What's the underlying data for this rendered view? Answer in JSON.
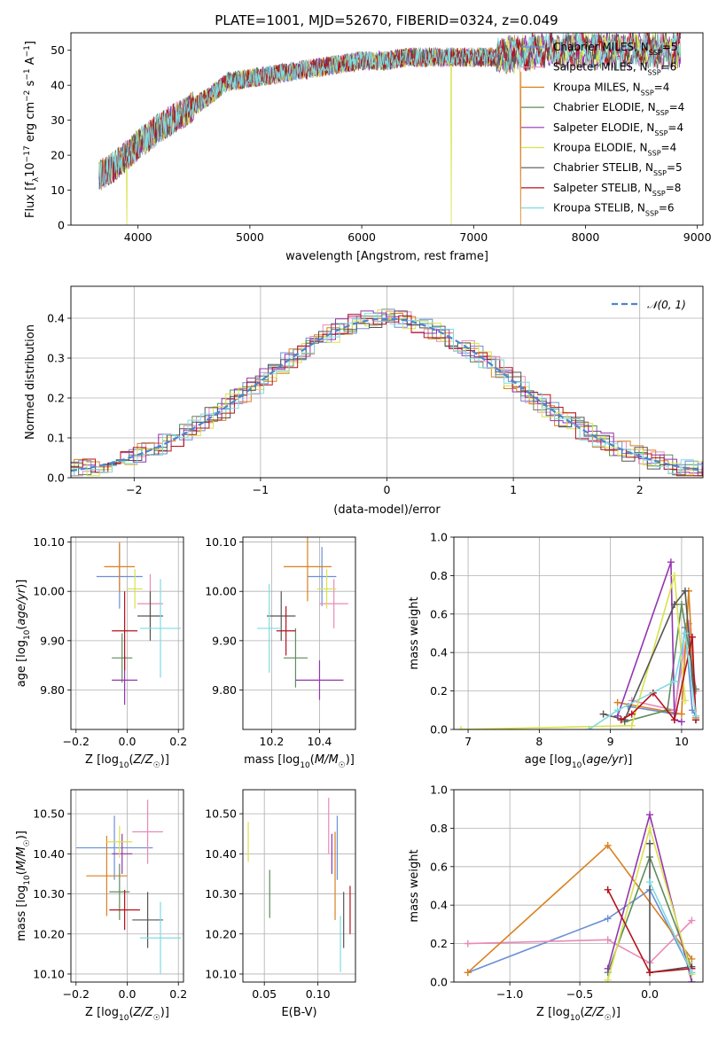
{
  "title": "PLATE=1001, MJD=52670, FIBERID=0324, z=0.049",
  "models": [
    {
      "name": "Chabrier MILES, N_SSP=5",
      "base": "Chabrier MILES, N",
      "sub": "SSP",
      "eq": "=5",
      "color": "#6a8fd6"
    },
    {
      "name": "Salpeter MILES, N_SSP=6",
      "base": "Salpeter MILES, N",
      "sub": "SSP",
      "eq": "=6",
      "color": "#e98ab8"
    },
    {
      "name": "Kroupa MILES, N_SSP=4",
      "base": "Kroupa MILES, N",
      "sub": "SSP",
      "eq": "=4",
      "color": "#d9801f"
    },
    {
      "name": "Chabrier ELODIE, N_SSP=4",
      "base": "Chabrier ELODIE, N",
      "sub": "SSP",
      "eq": "=4",
      "color": "#5d8c5d"
    },
    {
      "name": "Salpeter ELODIE, N_SSP=4",
      "base": "Salpeter ELODIE, N",
      "sub": "SSP",
      "eq": "=4",
      "color": "#9435b0"
    },
    {
      "name": "Kroupa ELODIE, N_SSP=4",
      "base": "Kroupa ELODIE, N",
      "sub": "SSP",
      "eq": "=4",
      "color": "#d9e24a"
    },
    {
      "name": "Chabrier STELIB, N_SSP=5",
      "base": "Chabrier STELIB, N",
      "sub": "SSP",
      "eq": "=5",
      "color": "#555555"
    },
    {
      "name": "Salpeter STELIB, N_SSP=8",
      "base": "Salpeter STELIB, N",
      "sub": "SSP",
      "eq": "=8",
      "color": "#b5121b"
    },
    {
      "name": "Kroupa STELIB, N_SSP=6",
      "base": "Kroupa STELIB, N",
      "sub": "SSP",
      "eq": "=6",
      "color": "#7fdbe0"
    }
  ],
  "chart_data": [
    {
      "id": "spectrum",
      "type": "line",
      "xlabel": "wavelength [Angstrom, rest frame]",
      "ylabel": "Flux [f_λ10^-17 erg cm^-2 s^-1 A^-1]",
      "xlim": [
        3400,
        9050
      ],
      "ylim": [
        0,
        55
      ],
      "xticks": [
        4000,
        5000,
        6000,
        7000,
        8000,
        9000
      ],
      "yticks": [
        0,
        10,
        20,
        30,
        40,
        50
      ],
      "x": [
        3650,
        3800,
        4000,
        4200,
        4400,
        4600,
        4800,
        5000,
        5200,
        5400,
        5600,
        5800,
        6000,
        6200,
        6400,
        6600,
        6800,
        7000,
        7200,
        7400,
        7600,
        7800
      ],
      "y": [
        14,
        17,
        23,
        28,
        32,
        36,
        41,
        42,
        43,
        44,
        45,
        46,
        47,
        47,
        48,
        48,
        48,
        48,
        48,
        49,
        50,
        50
      ],
      "drops": [
        {
          "model": "Kroupa ELODIE, N_SSP=4",
          "x": 3900
        },
        {
          "model": "Kroupa ELODIE, N_SSP=4",
          "x": 6800
        },
        {
          "model": "Kroupa MILES, N_SSP=4",
          "x": 7420
        }
      ]
    },
    {
      "id": "residuals",
      "type": "step",
      "xlabel": "(data-model)/error",
      "ylabel": "Normed distribution",
      "xlim": [
        -2.5,
        2.5
      ],
      "ylim": [
        0,
        0.48
      ],
      "xticks": [
        -2,
        -1,
        0,
        1,
        2
      ],
      "yticks": [
        0.0,
        0.1,
        0.2,
        0.3,
        0.4
      ],
      "reference": {
        "name": "N(0,1)",
        "mu": 0,
        "sigma": 1
      }
    },
    {
      "id": "Z-age",
      "type": "errorbar",
      "xlabel": "Z [log10(Z/Z☉)]",
      "ylabel": "age [log10(age/yr)]",
      "xlim": [
        -0.22,
        0.22
      ],
      "ylim": [
        9.72,
        10.11
      ],
      "xticks": [
        -0.2,
        0.0,
        0.2
      ],
      "yticks": [
        9.8,
        9.9,
        10.0,
        10.1
      ],
      "points": [
        {
          "model": "Chabrier MILES, N_SSP=5",
          "x": -0.03,
          "y": 10.03,
          "xerr": 0.09,
          "yerr": 0.065
        },
        {
          "model": "Salpeter MILES, N_SSP=6",
          "x": 0.09,
          "y": 9.975,
          "xerr": 0.05,
          "yerr": 0.06
        },
        {
          "model": "Kroupa MILES, N_SSP=4",
          "x": -0.03,
          "y": 10.05,
          "xerr": 0.06,
          "yerr": 0.05
        },
        {
          "model": "Chabrier ELODIE, N_SSP=4",
          "x": -0.02,
          "y": 9.865,
          "xerr": 0.04,
          "yerr": 0.05
        },
        {
          "model": "Salpeter ELODIE, N_SSP=4",
          "x": -0.01,
          "y": 9.82,
          "xerr": 0.05,
          "yerr": 0.05
        },
        {
          "model": "Kroupa ELODIE, N_SSP=4",
          "x": 0.03,
          "y": 10.005,
          "xerr": 0.03,
          "yerr": 0.04
        },
        {
          "model": "Chabrier STELIB, N_SSP=5",
          "x": 0.09,
          "y": 9.95,
          "xerr": 0.05,
          "yerr": 0.05
        },
        {
          "model": "Salpeter STELIB, N_SSP=8",
          "x": -0.01,
          "y": 9.92,
          "xerr": 0.05,
          "yerr": 0.08
        },
        {
          "model": "Kroupa STELIB, N_SSP=6",
          "x": 0.13,
          "y": 9.925,
          "xerr": 0.08,
          "yerr": 0.1
        }
      ]
    },
    {
      "id": "mass-age",
      "type": "errorbar",
      "xlabel": "mass [log10(M/M☉)]",
      "ylabel": "",
      "xlim": [
        10.08,
        10.55
      ],
      "ylim": [
        9.72,
        10.11
      ],
      "xticks": [
        10.2,
        10.4
      ],
      "yticks": [
        9.8,
        9.9,
        10.0,
        10.1
      ],
      "points": [
        {
          "model": "Chabrier MILES, N_SSP=5",
          "x": 10.41,
          "y": 10.03,
          "xerr": 0.06,
          "yerr": 0.06
        },
        {
          "model": "Salpeter MILES, N_SSP=6",
          "x": 10.46,
          "y": 9.975,
          "xerr": 0.06,
          "yerr": 0.05
        },
        {
          "model": "Kroupa MILES, N_SSP=4",
          "x": 10.35,
          "y": 10.05,
          "xerr": 0.1,
          "yerr": 0.07
        },
        {
          "model": "Chabrier ELODIE, N_SSP=4",
          "x": 10.3,
          "y": 9.865,
          "xerr": 0.05,
          "yerr": 0.06
        },
        {
          "model": "Salpeter ELODIE, N_SSP=4",
          "x": 10.4,
          "y": 9.82,
          "xerr": 0.1,
          "yerr": 0.04
        },
        {
          "model": "Kroupa ELODIE, N_SSP=4",
          "x": 10.43,
          "y": 10.005,
          "xerr": 0.04,
          "yerr": 0.04
        },
        {
          "model": "Chabrier STELIB, N_SSP=5",
          "x": 10.24,
          "y": 9.95,
          "xerr": 0.06,
          "yerr": 0.05
        },
        {
          "model": "Salpeter STELIB, N_SSP=8",
          "x": 10.26,
          "y": 9.92,
          "xerr": 0.04,
          "yerr": 0.05
        },
        {
          "model": "Kroupa STELIB, N_SSP=6",
          "x": 10.19,
          "y": 9.925,
          "xerr": 0.05,
          "yerr": 0.09
        }
      ]
    },
    {
      "id": "age-weight",
      "type": "line",
      "xlabel": "age [log10(age/yr)]",
      "ylabel": "mass weight",
      "xlim": [
        6.8,
        10.3
      ],
      "ylim": [
        0,
        1.0
      ],
      "xticks": [
        7,
        8,
        9,
        10
      ],
      "yticks": [
        0.0,
        0.2,
        0.4,
        0.6,
        0.8,
        1.0
      ],
      "series": [
        {
          "model": "Chabrier MILES, N_SSP=5",
          "x": [
            9.25,
            9.9,
            10.05,
            10.15,
            10.2
          ],
          "y": [
            0.12,
            0.08,
            0.53,
            0.1,
            0.07
          ]
        },
        {
          "model": "Salpeter MILES, N_SSP=6",
          "x": [
            9.3,
            9.9,
            10.1,
            10.2
          ],
          "y": [
            0.15,
            0.1,
            0.55,
            0.2
          ]
        },
        {
          "model": "Kroupa MILES, N_SSP=4",
          "x": [
            9.1,
            10.0,
            10.1,
            10.2
          ],
          "y": [
            0.14,
            0.08,
            0.72,
            0.06
          ]
        },
        {
          "model": "Chabrier ELODIE, N_SSP=4",
          "x": [
            9.2,
            9.8,
            10.0,
            10.2
          ],
          "y": [
            0.04,
            0.1,
            0.65,
            0.21
          ]
        },
        {
          "model": "Salpeter ELODIE, N_SSP=4",
          "x": [
            9.1,
            9.85,
            9.9,
            10.0
          ],
          "y": [
            0.07,
            0.87,
            0.05,
            0.04
          ]
        },
        {
          "model": "Kroupa ELODIE, N_SSP=4",
          "x": [
            6.9,
            9.3,
            9.9,
            10.05
          ],
          "y": [
            0.0,
            0.02,
            0.8,
            0.15
          ]
        },
        {
          "model": "Chabrier STELIB, N_SSP=5",
          "x": [
            8.9,
            9.2,
            9.9,
            10.05,
            10.2
          ],
          "y": [
            0.08,
            0.05,
            0.65,
            0.72,
            0.05
          ]
        },
        {
          "model": "Salpeter STELIB, N_SSP=8",
          "x": [
            9.15,
            9.3,
            9.6,
            9.9,
            10.15,
            10.2
          ],
          "y": [
            0.05,
            0.08,
            0.19,
            0.05,
            0.48,
            0.05
          ]
        },
        {
          "model": "Kroupa STELIB, N_SSP=6",
          "x": [
            8.7,
            9.1,
            9.9,
            10.05,
            10.2
          ],
          "y": [
            0.0,
            0.1,
            0.25,
            0.5,
            0.07
          ]
        }
      ]
    },
    {
      "id": "Z-mass",
      "type": "errorbar",
      "xlabel": "Z [log10(Z/Z☉)]",
      "ylabel": "mass [log10(M/M☉)]",
      "xlim": [
        -0.22,
        0.22
      ],
      "ylim": [
        10.08,
        10.56
      ],
      "xticks": [
        -0.2,
        0.0,
        0.2
      ],
      "yticks": [
        10.1,
        10.2,
        10.3,
        10.4,
        10.5
      ],
      "points": [
        {
          "model": "Chabrier MILES, N_SSP=5",
          "x": -0.05,
          "y": 10.415,
          "xerr": 0.15,
          "yerr": 0.08
        },
        {
          "model": "Salpeter MILES, N_SSP=6",
          "x": 0.08,
          "y": 10.455,
          "xerr": 0.06,
          "yerr": 0.08
        },
        {
          "model": "Kroupa MILES, N_SSP=4",
          "x": -0.08,
          "y": 10.345,
          "xerr": 0.08,
          "yerr": 0.1
        },
        {
          "model": "Chabrier ELODIE, N_SSP=4",
          "x": -0.03,
          "y": 10.305,
          "xerr": 0.04,
          "yerr": 0.07
        },
        {
          "model": "Salpeter ELODIE, N_SSP=4",
          "x": -0.02,
          "y": 10.4,
          "xerr": 0.04,
          "yerr": 0.05
        },
        {
          "model": "Kroupa ELODIE, N_SSP=4",
          "x": -0.03,
          "y": 10.43,
          "xerr": 0.05,
          "yerr": 0.04
        },
        {
          "model": "Chabrier STELIB, N_SSP=5",
          "x": 0.08,
          "y": 10.235,
          "xerr": 0.06,
          "yerr": 0.07
        },
        {
          "model": "Salpeter STELIB, N_SSP=8",
          "x": -0.01,
          "y": 10.26,
          "xerr": 0.06,
          "yerr": 0.05
        },
        {
          "model": "Kroupa STELIB, N_SSP=6",
          "x": 0.13,
          "y": 10.19,
          "xerr": 0.08,
          "yerr": 0.09
        }
      ]
    },
    {
      "id": "EBV-mass",
      "type": "errorbar",
      "xlabel": "E(B-V)",
      "ylabel": "",
      "xlim": [
        0.03,
        0.135
      ],
      "ylim": [
        10.08,
        10.56
      ],
      "xticks": [
        0.05,
        0.1
      ],
      "yticks": [
        10.1,
        10.2,
        10.3,
        10.4,
        10.5
      ],
      "points": [
        {
          "model": "Chabrier MILES, N_SSP=5",
          "x": 0.118,
          "y": 10.415,
          "yerr": 0.08
        },
        {
          "model": "Salpeter MILES, N_SSP=6",
          "x": 0.11,
          "y": 10.47,
          "yerr": 0.07
        },
        {
          "model": "Kroupa MILES, N_SSP=4",
          "x": 0.116,
          "y": 10.345,
          "yerr": 0.11
        },
        {
          "model": "Chabrier ELODIE, N_SSP=4",
          "x": 0.055,
          "y": 10.3,
          "yerr": 0.06
        },
        {
          "model": "Salpeter ELODIE, N_SSP=4",
          "x": 0.113,
          "y": 10.4,
          "yerr": 0.05
        },
        {
          "model": "Kroupa ELODIE, N_SSP=4",
          "x": 0.035,
          "y": 10.43,
          "yerr": 0.05
        },
        {
          "model": "Chabrier STELIB, N_SSP=5",
          "x": 0.124,
          "y": 10.235,
          "yerr": 0.07
        },
        {
          "model": "Salpeter STELIB, N_SSP=8",
          "x": 0.13,
          "y": 10.26,
          "yerr": 0.06
        },
        {
          "model": "Kroupa STELIB, N_SSP=6",
          "x": 0.121,
          "y": 10.175,
          "yerr": 0.07
        }
      ]
    },
    {
      "id": "Z-weight",
      "type": "line",
      "xlabel": "Z [log10(Z/Z☉)]",
      "ylabel": "mass weight",
      "xlim": [
        -1.4,
        0.38
      ],
      "ylim": [
        0,
        1.0
      ],
      "xticks": [
        -1.0,
        -0.5,
        0.0
      ],
      "yticks": [
        0.0,
        0.2,
        0.4,
        0.6,
        0.8,
        1.0
      ],
      "series": [
        {
          "model": "Chabrier MILES, N_SSP=5",
          "x": [
            -1.3,
            -0.3,
            0.0,
            0.3
          ],
          "y": [
            0.05,
            0.33,
            0.48,
            0.05
          ]
        },
        {
          "model": "Salpeter MILES, N_SSP=6",
          "x": [
            -1.3,
            -0.3,
            0.0,
            0.3
          ],
          "y": [
            0.2,
            0.22,
            0.1,
            0.32
          ]
        },
        {
          "model": "Kroupa MILES, N_SSP=4",
          "x": [
            -1.3,
            -0.3,
            0.3
          ],
          "y": [
            0.05,
            0.71,
            0.12
          ]
        },
        {
          "model": "Chabrier ELODIE, N_SSP=4",
          "x": [
            -0.3,
            0.0,
            0.3
          ],
          "y": [
            0.05,
            0.65,
            0.07
          ]
        },
        {
          "model": "Salpeter ELODIE, N_SSP=4",
          "x": [
            -0.3,
            0.0,
            0.3
          ],
          "y": [
            0.07,
            0.87,
            0.0
          ]
        },
        {
          "model": "Kroupa ELODIE, N_SSP=4",
          "x": [
            -0.3,
            0.0,
            0.3
          ],
          "y": [
            0.01,
            0.8,
            0.04
          ]
        },
        {
          "model": "Chabrier STELIB, N_SSP=5",
          "x": [
            0.0,
            0.0,
            0.3
          ],
          "y": [
            0.72,
            0.05,
            0.08
          ]
        },
        {
          "model": "Salpeter STELIB, N_SSP=8",
          "x": [
            -0.3,
            0.0,
            0.3
          ],
          "y": [
            0.48,
            0.05,
            0.07
          ]
        },
        {
          "model": "Kroupa STELIB, N_SSP=6",
          "x": [
            0.0,
            0.3
          ],
          "y": [
            0.52,
            0.05
          ]
        }
      ]
    }
  ]
}
